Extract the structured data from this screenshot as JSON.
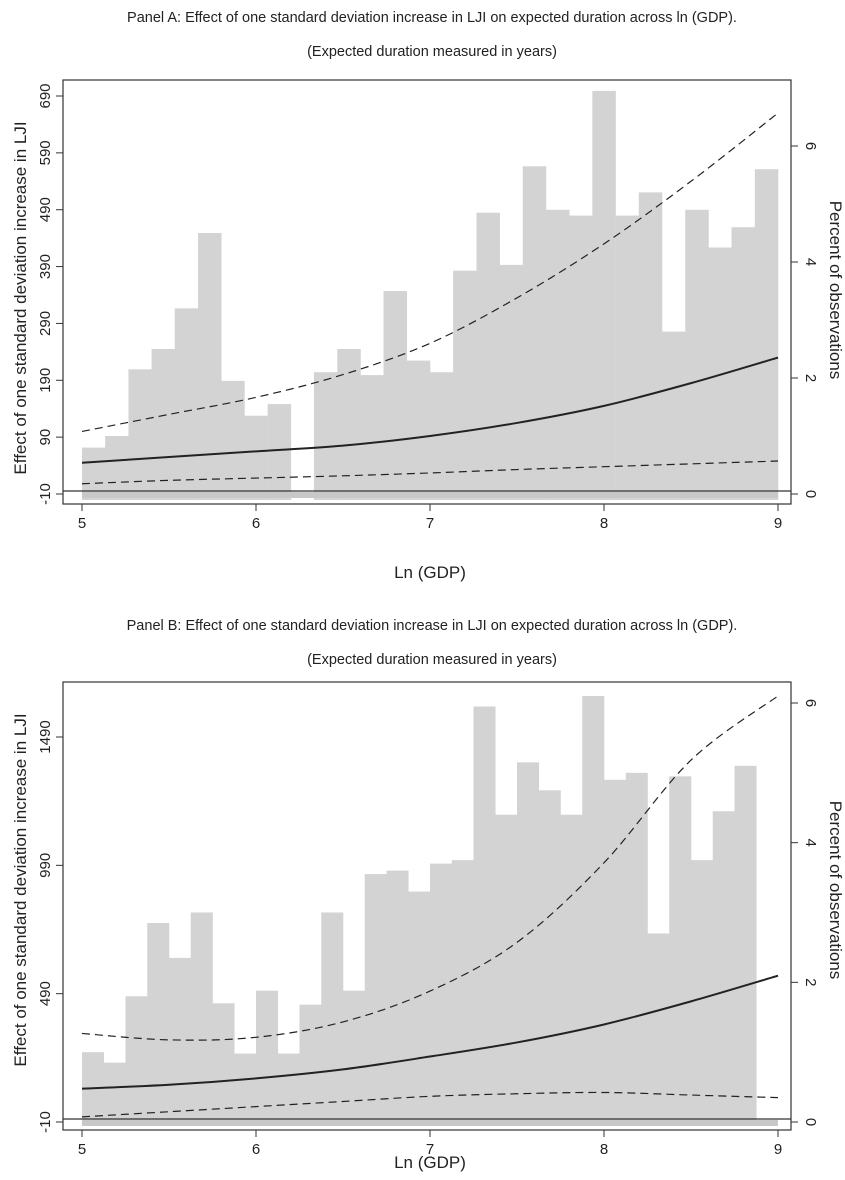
{
  "chart_data": [
    {
      "type": "bar+line",
      "title": "Panel A: Effect of one standard deviation increase in LJI on expected duration across ln (GDP).",
      "subtitle": "(Expected duration measured in years)",
      "xlabel": "Ln (GDP)",
      "ylabel": "Effect of one standard deviation increase in LJI",
      "y2label": "Percent of observations",
      "xlim": [
        5,
        9
      ],
      "ylim": [
        -10,
        690
      ],
      "y2lim": [
        0,
        7.0
      ],
      "x_ticks": [
        "5",
        "6",
        "7",
        "8",
        "9"
      ],
      "y_ticks": [
        "-10",
        "90",
        "190",
        "290",
        "390",
        "490",
        "590",
        "690"
      ],
      "y2_ticks": [
        "0",
        "2",
        "4",
        "6"
      ],
      "histogram": {
        "bin_width": 0.1333,
        "bins_start": [
          5.0,
          5.133,
          5.267,
          5.4,
          5.533,
          5.667,
          5.8,
          5.933,
          6.067,
          6.2,
          6.333,
          6.467,
          6.6,
          6.733,
          6.867,
          7.0,
          7.133,
          7.267,
          7.4,
          7.533,
          7.667,
          7.8,
          7.933,
          8.067,
          8.2,
          8.333,
          8.467,
          8.6,
          8.733,
          8.867
        ],
        "percent": [
          0.8,
          1.0,
          2.15,
          2.5,
          3.2,
          4.5,
          1.95,
          1.35,
          1.55,
          0,
          2.1,
          2.5,
          2.05,
          3.5,
          2.3,
          2.1,
          3.85,
          4.85,
          3.95,
          5.65,
          4.9,
          4.8,
          6.95,
          4.8,
          5.2,
          2.8,
          4.9,
          4.25,
          4.6,
          5.6
        ]
      },
      "series": [
        {
          "style": "solid",
          "x": [
            5.0,
            5.5,
            6.0,
            6.5,
            7.0,
            7.5,
            8.0,
            8.5,
            9.0
          ],
          "values": [
            45,
            55,
            65,
            75,
            92,
            115,
            145,
            185,
            230
          ]
        },
        {
          "style": "dashed",
          "x": [
            5.0,
            5.5,
            6.0,
            6.5,
            7.0,
            7.5,
            8.0,
            8.5,
            9.0
          ],
          "values": [
            100,
            130,
            160,
            200,
            255,
            335,
            430,
            540,
            660
          ]
        },
        {
          "style": "dashed",
          "x": [
            5.0,
            5.5,
            6.0,
            6.5,
            7.0,
            7.5,
            8.0,
            8.5,
            9.0
          ],
          "values": [
            8,
            14,
            18,
            22,
            27,
            33,
            38,
            43,
            48
          ]
        }
      ]
    },
    {
      "type": "bar+line",
      "title": "Panel B: Effect of one standard deviation increase in LJI on expected duration across ln (GDP).",
      "subtitle": "(Expected duration measured in years)",
      "xlabel": "Ln (GDP)",
      "ylabel": "Effect of one standard deviation increase in LJI",
      "y2label": "Percent of observations",
      "xlim": [
        5,
        9
      ],
      "ylim": [
        -10,
        1680
      ],
      "y2lim": [
        0,
        6.2
      ],
      "x_ticks": [
        "5",
        "6",
        "7",
        "8",
        "9"
      ],
      "y_ticks": [
        "-10",
        "490",
        "990",
        "1490"
      ],
      "y2_ticks": [
        "0",
        "2",
        "4",
        "6"
      ],
      "histogram": {
        "bin_width": 0.125,
        "bins_start": [
          5.0,
          5.125,
          5.25,
          5.375,
          5.5,
          5.625,
          5.75,
          5.875,
          6.0,
          6.125,
          6.25,
          6.375,
          6.5,
          6.625,
          6.75,
          6.875,
          7.0,
          7.125,
          7.25,
          7.375,
          7.5,
          7.625,
          7.75,
          7.875,
          8.0,
          8.125,
          8.25,
          8.375,
          8.5,
          8.625,
          8.75,
          8.875
        ],
        "percent": [
          1.0,
          0.85,
          1.8,
          2.85,
          2.35,
          3.0,
          1.7,
          0.98,
          1.88,
          0.98,
          1.68,
          3.0,
          1.88,
          3.55,
          3.6,
          3.3,
          3.7,
          3.75,
          5.95,
          4.4,
          5.15,
          4.75,
          4.4,
          6.1,
          4.9,
          5.0,
          2.7,
          4.95,
          3.75,
          4.45,
          5.1,
          0
        ],
        "note_last_bin": 0
      },
      "series": [
        {
          "style": "solid",
          "x": [
            5.0,
            5.5,
            6.0,
            6.5,
            7.0,
            7.5,
            8.0,
            8.5,
            9.0
          ],
          "values": [
            120,
            135,
            160,
            195,
            245,
            300,
            370,
            460,
            560
          ]
        },
        {
          "style": "dashed",
          "x": [
            5.0,
            5.5,
            6.0,
            6.5,
            7.0,
            7.5,
            8.0,
            8.5,
            9.0
          ],
          "values": [
            335,
            310,
            320,
            380,
            500,
            690,
            1000,
            1400,
            1650
          ]
        },
        {
          "style": "dashed",
          "x": [
            5.0,
            5.5,
            6.0,
            6.5,
            7.0,
            7.5,
            8.0,
            8.5,
            9.0
          ],
          "values": [
            10,
            30,
            50,
            70,
            90,
            100,
            105,
            95,
            85
          ]
        }
      ]
    }
  ]
}
